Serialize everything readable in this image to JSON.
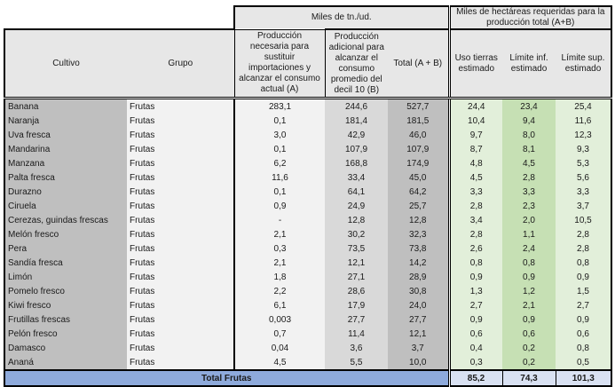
{
  "header": {
    "group_tn": "Miles de tn./ud.",
    "group_ha": "Miles de hectáreas requeridas para la producción total (A+B)",
    "col_cultivo": "Cultivo",
    "col_grupo": "Grupo",
    "col_a": "Producción necesaria para sustituir importaciones y alcanzar el consumo actual (A)",
    "col_b": "Producción adicional para alcanzar el consumo promedio del decil 10 (B)",
    "col_total": "Total (A + B)",
    "col_uso": "Uso tierras estimado",
    "col_inf": "Límite inf. estimado",
    "col_sup": "Límite sup. estimado"
  },
  "rows": [
    {
      "cultivo": "Banana",
      "grupo": "Frutas",
      "a": "283,1",
      "b": "244,6",
      "total": "527,7",
      "uso": "24,4",
      "inf": "23,4",
      "sup": "25,4"
    },
    {
      "cultivo": "Naranja",
      "grupo": "Frutas",
      "a": "0,1",
      "b": "181,4",
      "total": "181,5",
      "uso": "10,4",
      "inf": "9,4",
      "sup": "11,6"
    },
    {
      "cultivo": "Uva fresca",
      "grupo": "Frutas",
      "a": "3,0",
      "b": "42,9",
      "total": "46,0",
      "uso": "9,7",
      "inf": "8,0",
      "sup": "12,3"
    },
    {
      "cultivo": "Mandarina",
      "grupo": "Frutas",
      "a": "0,1",
      "b": "107,9",
      "total": "107,9",
      "uso": "8,7",
      "inf": "8,1",
      "sup": "9,3"
    },
    {
      "cultivo": "Manzana",
      "grupo": "Frutas",
      "a": "6,2",
      "b": "168,8",
      "total": "174,9",
      "uso": "4,8",
      "inf": "4,5",
      "sup": "5,3"
    },
    {
      "cultivo": "Palta fresca",
      "grupo": "Frutas",
      "a": "11,6",
      "b": "33,4",
      "total": "45,0",
      "uso": "4,5",
      "inf": "2,8",
      "sup": "5,6"
    },
    {
      "cultivo": "Durazno",
      "grupo": "Frutas",
      "a": "0,1",
      "b": "64,1",
      "total": "64,2",
      "uso": "3,3",
      "inf": "3,3",
      "sup": "3,3"
    },
    {
      "cultivo": "Ciruela",
      "grupo": "Frutas",
      "a": "0,9",
      "b": "24,9",
      "total": "25,7",
      "uso": "2,8",
      "inf": "2,3",
      "sup": "3,7"
    },
    {
      "cultivo": "Cerezas, guindas frescas",
      "grupo": "Frutas",
      "a": "-",
      "b": "12,8",
      "total": "12,8",
      "uso": "3,4",
      "inf": "2,0",
      "sup": "10,5"
    },
    {
      "cultivo": "Melón fresco",
      "grupo": "Frutas",
      "a": "2,1",
      "b": "30,2",
      "total": "32,3",
      "uso": "2,8",
      "inf": "1,1",
      "sup": "2,8"
    },
    {
      "cultivo": "Pera",
      "grupo": "Frutas",
      "a": "0,3",
      "b": "73,5",
      "total": "73,8",
      "uso": "2,6",
      "inf": "2,4",
      "sup": "2,8"
    },
    {
      "cultivo": "Sandía fresca",
      "grupo": "Frutas",
      "a": "2,1",
      "b": "12,1",
      "total": "14,2",
      "uso": "0,8",
      "inf": "0,8",
      "sup": "0,8"
    },
    {
      "cultivo": "Limón",
      "grupo": "Frutas",
      "a": "1,8",
      "b": "27,1",
      "total": "28,9",
      "uso": "0,9",
      "inf": "0,9",
      "sup": "0,9"
    },
    {
      "cultivo": "Pomelo fresco",
      "grupo": "Frutas",
      "a": "2,2",
      "b": "28,6",
      "total": "30,8",
      "uso": "1,3",
      "inf": "1,2",
      "sup": "1,5"
    },
    {
      "cultivo": "Kiwi fresco",
      "grupo": "Frutas",
      "a": "6,1",
      "b": "17,9",
      "total": "24,0",
      "uso": "2,7",
      "inf": "2,1",
      "sup": "2,7"
    },
    {
      "cultivo": "Frutillas frescas",
      "grupo": "Frutas",
      "a": "0,003",
      "b": "27,7",
      "total": "27,7",
      "uso": "0,9",
      "inf": "0,9",
      "sup": "0,9"
    },
    {
      "cultivo": "Pelón fresco",
      "grupo": "Frutas",
      "a": "0,7",
      "b": "11,4",
      "total": "12,1",
      "uso": "0,6",
      "inf": "0,6",
      "sup": "0,6"
    },
    {
      "cultivo": "Damasco",
      "grupo": "Frutas",
      "a": "0,04",
      "b": "3,6",
      "total": "3,7",
      "uso": "0,4",
      "inf": "0,2",
      "sup": "0,8"
    },
    {
      "cultivo": "Ananá",
      "grupo": "Frutas",
      "a": "4,5",
      "b": "5,5",
      "total": "10,0",
      "uso": "0,3",
      "inf": "0,2",
      "sup": "0,5"
    }
  ],
  "total": {
    "label": "Total Frutas",
    "uso": "85,2",
    "inf": "74,3",
    "sup": "101,3"
  },
  "colors": {
    "header_bg": "#e7e7e7",
    "cultivo_bg": "#bfbfbf",
    "total_col_bg": "#bfbfbf",
    "b_col_bg": "#d9d9d9",
    "green_light": "#e2efda",
    "green_mid": "#c6e0b4",
    "total_row_blue": "#8eaadb",
    "total_value_bg": "#d9e1f2"
  }
}
